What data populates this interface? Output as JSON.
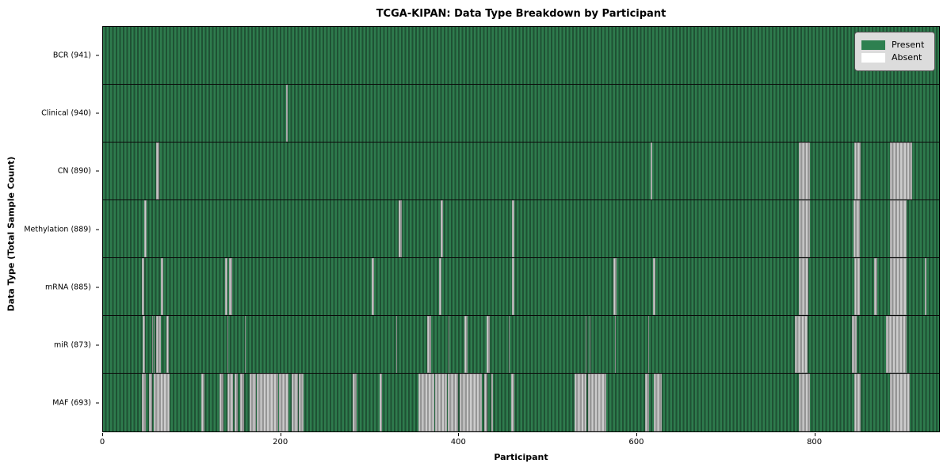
{
  "figure": {
    "title": "TCGA-KIPAN: Data Type Breakdown by Participant",
    "xlabel": "Participant",
    "ylabel": "Data Type (Total Sample Count)"
  },
  "legend": {
    "present_label": "Present",
    "absent_label": "Absent",
    "present_color": "#2e8050",
    "absent_color": "#ffffff"
  },
  "chart_data": {
    "type": "heatmap",
    "title": "TCGA-KIPAN: Data Type Breakdown by Participant",
    "xlabel": "Participant",
    "ylabel": "Data Type (Total Sample Count)",
    "n_participants": 941,
    "x_ticks": [
      0,
      200,
      400,
      600,
      800
    ],
    "legend_position": "upper right",
    "colors": {
      "present_light": "#2e7b4d",
      "present_dark": "#1f5134",
      "absent_light": "#cccccc",
      "absent_dark": "#969696"
    },
    "rows": [
      {
        "label": "BCR (941)",
        "name": "BCR",
        "count": 941,
        "absent": []
      },
      {
        "label": "Clinical (940)",
        "name": "Clinical",
        "count": 940,
        "absent": [
          [
            206,
            208
          ]
        ]
      },
      {
        "label": "CN (890)",
        "name": "CN",
        "count": 890,
        "absent": [
          [
            60,
            63
          ],
          [
            616,
            618
          ],
          [
            783,
            796
          ],
          [
            846,
            853
          ],
          [
            886,
            911
          ]
        ]
      },
      {
        "label": "Methylation (889)",
        "name": "Methylation",
        "count": 889,
        "absent": [
          [
            46,
            49
          ],
          [
            333,
            336
          ],
          [
            380,
            383
          ],
          [
            460,
            463
          ],
          [
            783,
            796
          ],
          [
            845,
            852
          ],
          [
            886,
            904
          ]
        ]
      },
      {
        "label": "mRNA (885)",
        "name": "mRNA",
        "count": 885,
        "absent": [
          [
            44,
            46
          ],
          [
            65,
            68
          ],
          [
            137,
            140
          ],
          [
            142,
            145
          ],
          [
            302,
            305
          ],
          [
            378,
            381
          ],
          [
            460,
            463
          ],
          [
            574,
            578
          ],
          [
            619,
            622
          ],
          [
            783,
            794
          ],
          [
            846,
            852
          ],
          [
            868,
            871
          ],
          [
            886,
            904
          ],
          [
            925,
            927
          ]
        ]
      },
      {
        "label": "miR (873)",
        "name": "miR",
        "count": 873,
        "absent": [
          [
            45,
            47
          ],
          [
            55,
            56
          ],
          [
            57,
            58
          ],
          [
            60,
            65
          ],
          [
            71,
            74
          ],
          [
            140,
            141
          ],
          [
            160,
            161
          ],
          [
            330,
            331
          ],
          [
            365,
            369
          ],
          [
            389,
            390
          ],
          [
            407,
            410
          ],
          [
            432,
            435
          ],
          [
            457,
            458
          ],
          [
            543,
            544
          ],
          [
            548,
            549
          ],
          [
            576,
            577
          ],
          [
            614,
            615
          ],
          [
            779,
            793
          ],
          [
            843,
            848
          ],
          [
            881,
            904
          ]
        ]
      },
      {
        "label": "MAF (693)",
        "name": "MAF",
        "count": 693,
        "absent": [
          [
            44,
            48
          ],
          [
            52,
            55
          ],
          [
            57,
            75
          ],
          [
            111,
            114
          ],
          [
            131,
            136
          ],
          [
            140,
            146
          ],
          [
            148,
            152
          ],
          [
            154,
            159
          ],
          [
            165,
            172
          ],
          [
            173,
            197
          ],
          [
            198,
            209
          ],
          [
            212,
            219
          ],
          [
            220,
            226
          ],
          [
            281,
            285
          ],
          [
            311,
            314
          ],
          [
            355,
            373
          ],
          [
            374,
            387
          ],
          [
            388,
            400
          ],
          [
            401,
            426
          ],
          [
            429,
            433
          ],
          [
            437,
            439
          ],
          [
            459,
            463
          ],
          [
            531,
            544
          ],
          [
            546,
            566
          ],
          [
            610,
            615
          ],
          [
            620,
            629
          ],
          [
            783,
            796
          ],
          [
            846,
            853
          ],
          [
            886,
            908
          ]
        ]
      }
    ]
  }
}
